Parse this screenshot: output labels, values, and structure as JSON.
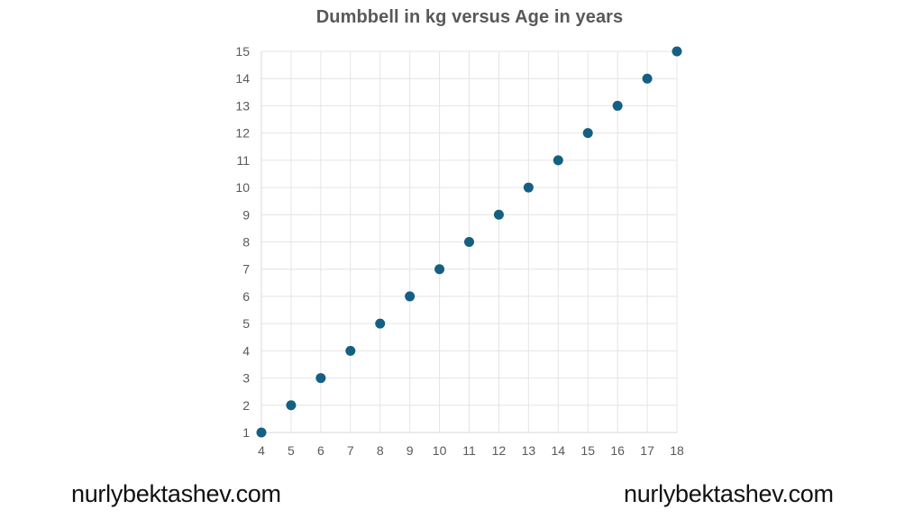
{
  "chart_data": {
    "type": "scatter",
    "title": "Dumbbell in kg versus Age in years",
    "xlabel": "",
    "ylabel": "",
    "x": [
      4,
      5,
      6,
      7,
      8,
      9,
      10,
      11,
      12,
      13,
      14,
      15,
      16,
      17,
      18
    ],
    "y": [
      1,
      2,
      3,
      4,
      5,
      6,
      7,
      8,
      9,
      10,
      11,
      12,
      13,
      14,
      15
    ],
    "xlim": [
      4,
      18
    ],
    "ylim": [
      1,
      15
    ],
    "x_ticks": [
      4,
      5,
      6,
      7,
      8,
      9,
      10,
      11,
      12,
      13,
      14,
      15,
      16,
      17,
      18
    ],
    "y_ticks": [
      1,
      2,
      3,
      4,
      5,
      6,
      7,
      8,
      9,
      10,
      11,
      12,
      13,
      14,
      15
    ],
    "grid": true,
    "legend": "none",
    "marker_radius_px": 5.5,
    "colors": {
      "marker": "#156082",
      "grid": "#e4e4e4",
      "axis": "#d9d9d9",
      "tick_label": "#595959",
      "title": "#595959",
      "watermark": "#111111"
    }
  },
  "watermarks": {
    "left": "nurlybektashev.com",
    "right": "nurlybektashev.com"
  }
}
